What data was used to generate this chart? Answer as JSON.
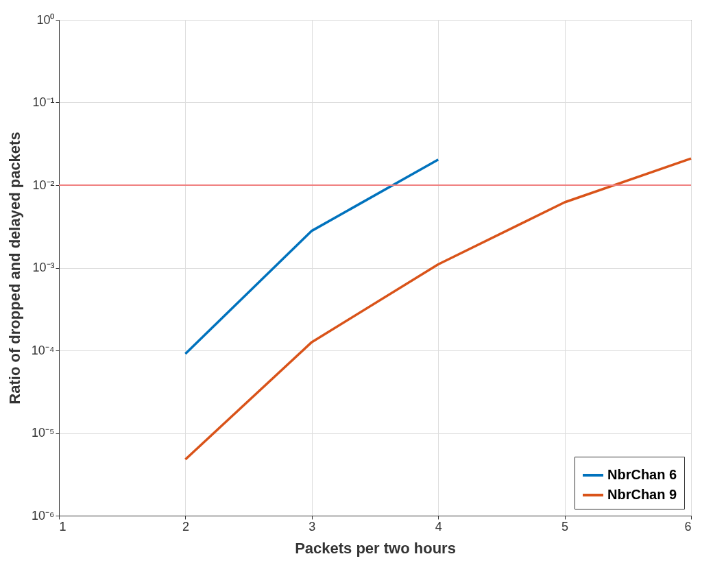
{
  "chart_data": {
    "type": "line",
    "xlabel": "Packets per two hours",
    "ylabel": "Ratio of dropped and delayed packets",
    "series": [
      {
        "name": "NbrChan 6",
        "color": "#0072bd",
        "x": [
          2,
          3,
          4
        ],
        "values": [
          9.1e-05,
          0.0028,
          0.0204
        ]
      },
      {
        "name": "NbrChan 9",
        "color": "#d95319",
        "x": [
          2,
          3,
          4,
          5,
          6
        ],
        "values": [
          4.8e-06,
          0.000126,
          0.0011,
          0.0062,
          0.021
        ]
      }
    ],
    "log": "y",
    "xlim": [
      1,
      6
    ],
    "xticks": [
      1,
      2,
      3,
      4,
      5,
      6
    ],
    "ylim": [
      1e-06,
      1
    ],
    "yticks": [
      {
        "value": 1e-06,
        "label": "10⁻⁶"
      },
      {
        "value": 1e-05,
        "label": "10⁻⁵"
      },
      {
        "value": 0.0001,
        "label": "10⁻⁴"
      },
      {
        "value": 0.001,
        "label": "10⁻³"
      },
      {
        "value": 0.01,
        "label": "10⁻²"
      },
      {
        "value": 0.1,
        "label": "10⁻¹"
      },
      {
        "value": 1,
        "label": "10⁰"
      }
    ],
    "ref_lines": [
      {
        "axis": "y",
        "value": 0.01,
        "color": "#f08080"
      }
    ],
    "grid": true,
    "legend": "bottom right",
    "marker": "none",
    "line_style": "solid"
  }
}
